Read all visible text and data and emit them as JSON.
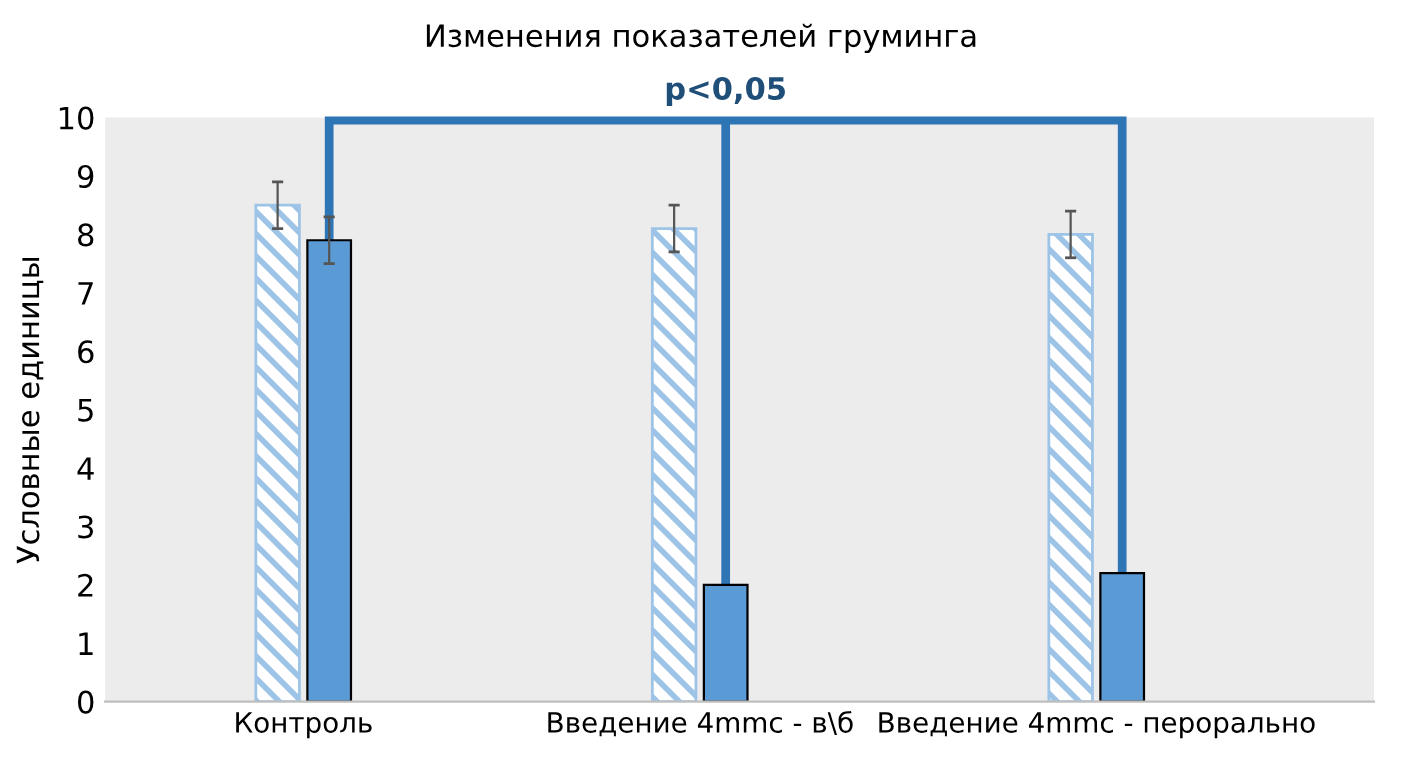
{
  "chart_data": {
    "type": "bar",
    "title": "Изменения показателей груминга",
    "ylabel": "Условные единицы",
    "categories": [
      "Контроль",
      "Введение 4mmc - в\\б",
      "Введение 4mmc - перорально"
    ],
    "series": [
      {
        "color": "#9dc3e6",
        "values": [
          8.5,
          8.1,
          8.0
        ],
        "errors": [
          0.4,
          0.4,
          0.4
        ]
      },
      {
        "color": "#5b9bd5",
        "values": [
          7.9,
          2.0,
          2.2
        ],
        "errors": [
          0.4,
          null,
          null
        ]
      }
    ],
    "ylim": [
      0,
      10
    ],
    "yticks": [
      0,
      1,
      2,
      3,
      4,
      5,
      6,
      7,
      8,
      9,
      10
    ],
    "grid": false,
    "legend": false,
    "annotations": [
      "p<0,05"
    ]
  }
}
